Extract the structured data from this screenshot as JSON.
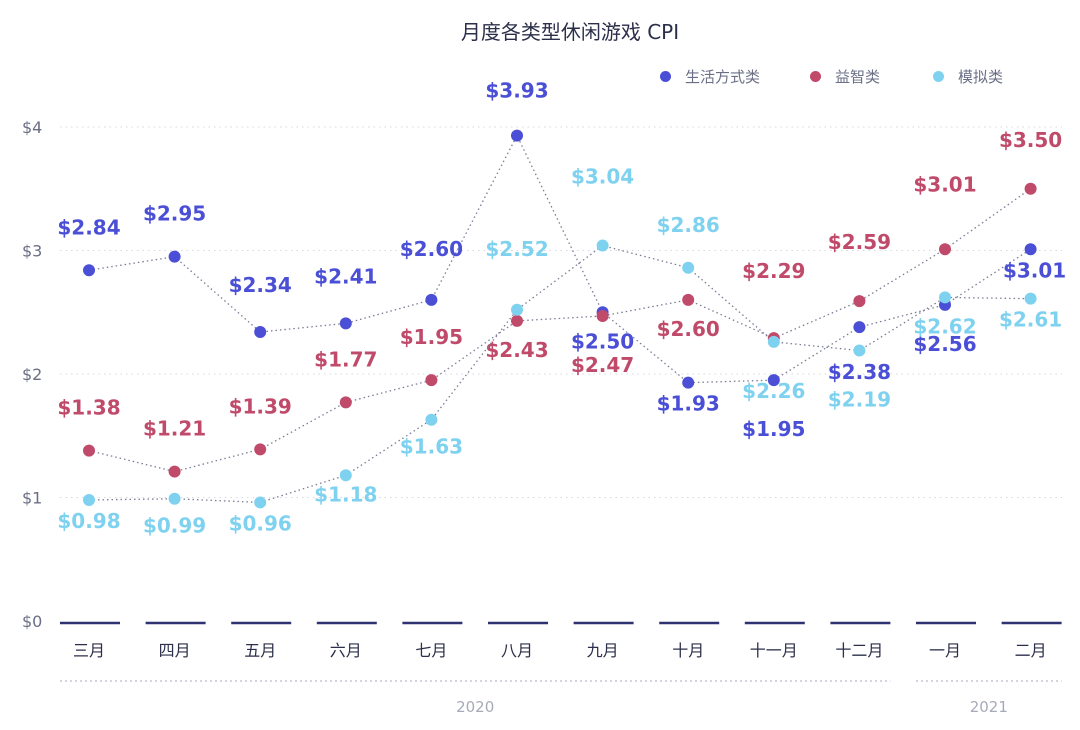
{
  "colors": {
    "lifestyle": "#4a4fd6",
    "puzzle": "#c04a6a",
    "simulation": "#7fd2ef",
    "axis": "#2f3270",
    "text_muted": "#6b6f86"
  },
  "chart_data": {
    "type": "line",
    "title": "月度各类型休闲游戏 CPI",
    "categories": [
      "三月",
      "四月",
      "五月",
      "六月",
      "七月",
      "八月",
      "九月",
      "十月",
      "十一月",
      "十二月",
      "一月",
      "二月"
    ],
    "year_labels": [
      {
        "label": "2020",
        "categories": [
          "三月",
          "四月",
          "五月",
          "六月",
          "七月",
          "八月",
          "九月",
          "十月",
          "十一月",
          "十二月"
        ]
      },
      {
        "label": "2021",
        "categories": [
          "一月",
          "二月"
        ]
      }
    ],
    "y_ticks": [
      "$0",
      "$1",
      "$2",
      "$3",
      "$4"
    ],
    "ylim": [
      0,
      4.5
    ],
    "grid": true,
    "legend_position": "top-right",
    "series": [
      {
        "name": "生活方式类",
        "color_key": "lifestyle",
        "values": [
          2.84,
          2.95,
          2.34,
          2.41,
          2.6,
          3.93,
          2.5,
          1.93,
          1.95,
          2.38,
          2.56,
          3.01
        ],
        "labels": [
          "$2.84",
          "$2.95",
          "$2.34",
          "$2.41",
          "$2.60",
          "$3.93",
          "$2.50",
          "$1.93",
          "$1.95",
          "$2.38",
          "$2.56",
          "$3.01"
        ]
      },
      {
        "name": "益智类",
        "color_key": "puzzle",
        "values": [
          1.38,
          1.21,
          1.39,
          1.77,
          1.95,
          2.43,
          2.47,
          2.6,
          2.29,
          2.59,
          3.01,
          3.5
        ],
        "labels": [
          "$1.38",
          "$1.21",
          "$1.39",
          "$1.77",
          "$1.95",
          "$2.43",
          "$2.47",
          "$2.60",
          "$2.29",
          "$2.59",
          "$3.01",
          "$3.50"
        ]
      },
      {
        "name": "模拟类",
        "color_key": "simulation",
        "values": [
          0.98,
          0.99,
          0.96,
          1.18,
          1.63,
          2.52,
          3.04,
          2.86,
          2.26,
          2.19,
          2.62,
          2.61
        ],
        "labels": [
          "$0.98",
          "$0.99",
          "$0.96",
          "$1.18",
          "$1.63",
          "$2.52",
          "$3.04",
          "$2.86",
          "$2.26",
          "$2.19",
          "$2.62",
          "$2.61"
        ]
      }
    ]
  }
}
